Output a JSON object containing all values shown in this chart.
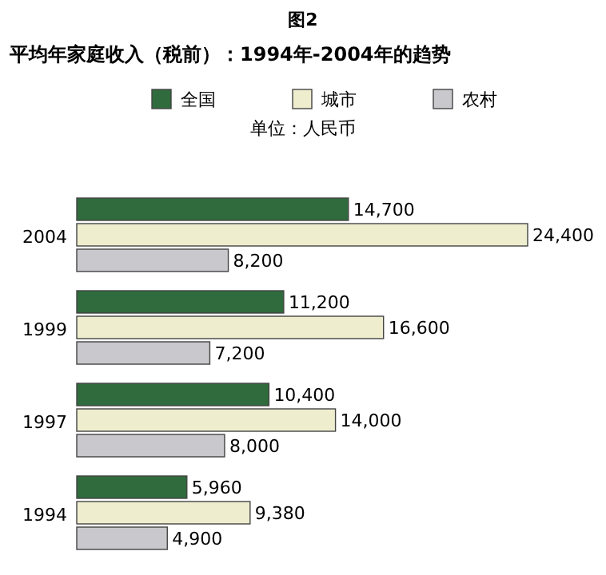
{
  "chart_data": {
    "type": "bar",
    "orientation": "horizontal",
    "title": "图2",
    "subtitle": "平均年家庭收入（税前）：1994年-2004年的趋势",
    "annotations": [
      "单位：人民币"
    ],
    "categories": [
      "2004",
      "1999",
      "1997",
      "1994"
    ],
    "series": [
      {
        "name": "全国",
        "color": "#2f6b3c",
        "values": [
          14700,
          11200,
          10400,
          5960
        ],
        "value_labels": [
          "14,700",
          "11,200",
          "10,400",
          "5,960"
        ]
      },
      {
        "name": "城市",
        "color": "#eeeecf",
        "values": [
          24400,
          16600,
          14000,
          9380
        ],
        "value_labels": [
          "24,400",
          "16,600",
          "14,000",
          "9,380"
        ]
      },
      {
        "name": "农村",
        "color": "#c9c9cd",
        "values": [
          8200,
          7200,
          8000,
          4900
        ],
        "value_labels": [
          "8,200",
          "7,200",
          "8,000",
          "4,900"
        ]
      }
    ],
    "legend": "top"
  }
}
